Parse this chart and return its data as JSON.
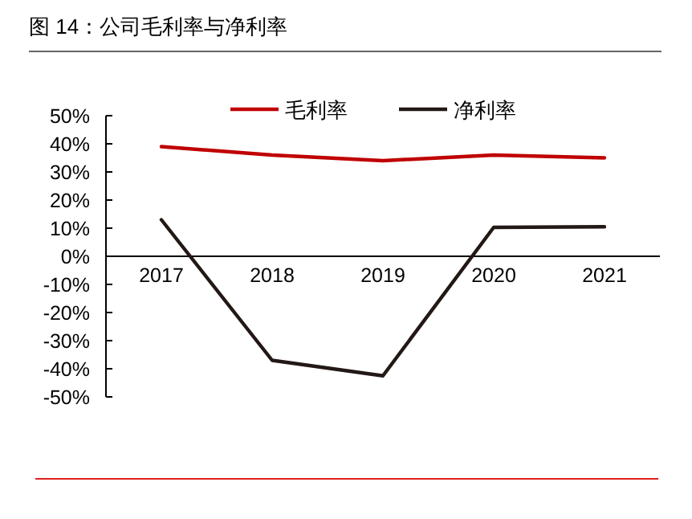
{
  "chart_data": {
    "type": "line",
    "title": "图 14：公司毛利率与净利率",
    "categories": [
      "2017",
      "2018",
      "2019",
      "2020",
      "2021"
    ],
    "series": [
      {
        "name": "毛利率",
        "color": "#c00000",
        "values": [
          39,
          36,
          34,
          36,
          35
        ]
      },
      {
        "name": "净利率",
        "color": "#231815",
        "values": [
          13,
          -37,
          -42.5,
          10.3,
          10.5
        ]
      }
    ],
    "ylim": [
      -50,
      50
    ],
    "yticks": [
      {
        "value": 50,
        "label": "50%"
      },
      {
        "value": 40,
        "label": "40%"
      },
      {
        "value": 30,
        "label": "30%"
      },
      {
        "value": 20,
        "label": "20%"
      },
      {
        "value": 10,
        "label": "10%"
      },
      {
        "value": 0,
        "label": "0%"
      },
      {
        "value": -10,
        "label": "-10%"
      },
      {
        "value": -20,
        "label": "-20%"
      },
      {
        "value": -30,
        "label": "-30%"
      },
      {
        "value": -40,
        "label": "-40%"
      },
      {
        "value": -50,
        "label": "-50%"
      }
    ],
    "legend": "top",
    "grid": false,
    "marker": "none",
    "line_style": "solid"
  }
}
